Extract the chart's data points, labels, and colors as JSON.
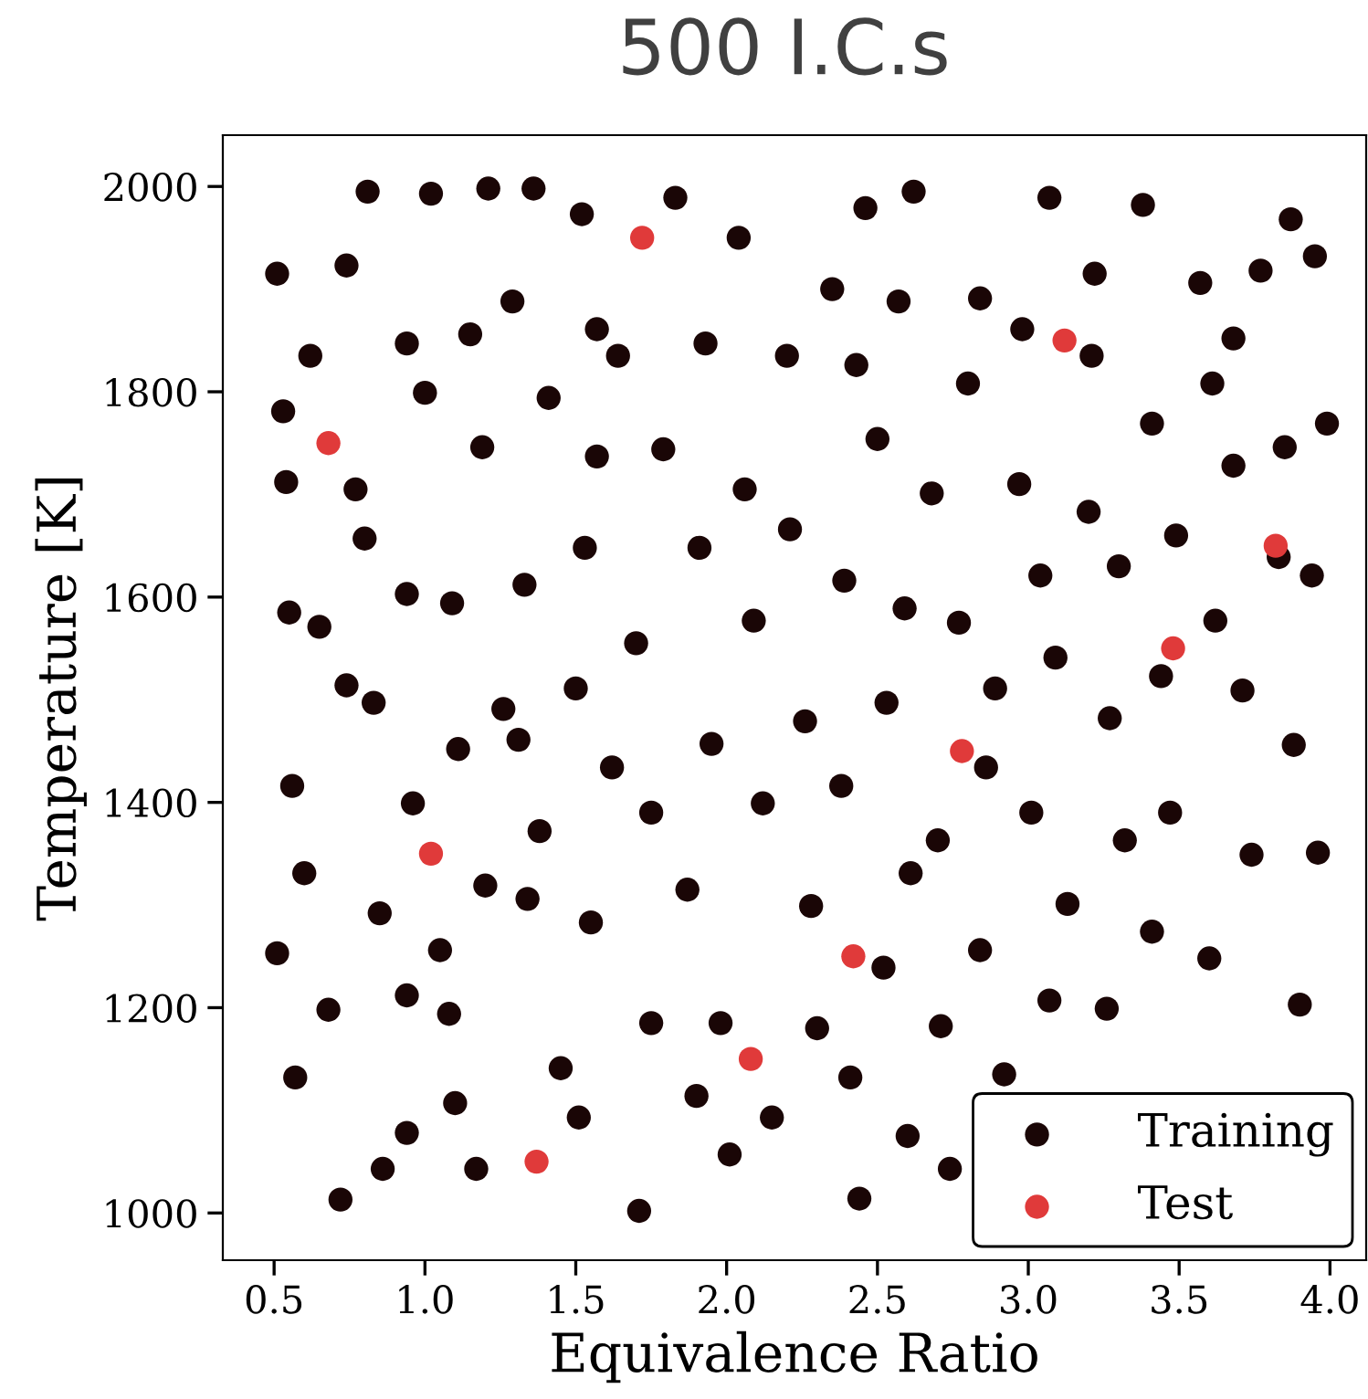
{
  "chart_data": {
    "type": "scatter",
    "title": "500 I.C.s",
    "xlabel": "Equivalence Ratio",
    "ylabel": "Temperature [K]",
    "xlim": [
      0.33,
      4.12
    ],
    "ylim": [
      954,
      2050
    ],
    "xticks": [
      0.5,
      {
        "value": 1,
        "label": "1.0"
      },
      1.5,
      {
        "value": 2,
        "label": "2.0"
      },
      2.5,
      {
        "value": 3,
        "label": "3.0"
      },
      3.5,
      {
        "value": 4,
        "label": "4.0"
      }
    ],
    "yticks": [
      1000,
      1200,
      1400,
      1600,
      1800,
      2000
    ],
    "grid": false,
    "legend": "bottom right",
    "marker": "circle",
    "series": [
      {
        "name": "Training",
        "color": "#1a0606",
        "x": [
          0.51,
          0.53,
          0.54,
          0.55,
          0.56,
          0.51,
          0.57,
          0.62,
          0.65,
          0.6,
          0.68,
          0.72,
          0.74,
          0.77,
          0.8,
          0.81,
          0.83,
          0.85,
          0.86,
          0.94,
          0.94,
          0.96,
          0.94,
          1.0,
          1.02,
          1.05,
          1.09,
          1.11,
          1.15,
          1.1,
          1.19,
          1.17,
          1.21,
          1.26,
          1.29,
          1.33,
          1.31,
          1.34,
          1.36,
          1.41,
          1.38,
          1.45,
          1.52,
          1.57,
          1.57,
          1.53,
          1.5,
          1.55,
          1.51,
          1.62,
          1.7,
          1.64,
          1.75,
          1.75,
          1.71,
          1.79,
          1.83,
          1.87,
          1.91,
          1.93,
          1.95,
          1.98,
          2.04,
          2.06,
          2.01,
          2.09,
          2.12,
          2.15,
          2.2,
          2.21,
          2.26,
          2.28,
          2.3,
          2.35,
          2.39,
          2.38,
          2.41,
          2.44,
          2.46,
          2.5,
          2.53,
          2.52,
          2.57,
          2.59,
          2.61,
          2.6,
          2.62,
          2.68,
          2.7,
          2.71,
          2.74,
          2.77,
          2.8,
          2.84,
          2.86,
          2.84,
          2.89,
          2.92,
          2.97,
          2.98,
          3.01,
          3.07,
          3.04,
          3.09,
          3.07,
          3.13,
          3.21,
          3.22,
          3.2,
          3.27,
          3.26,
          3.3,
          3.32,
          3.38,
          3.41,
          3.44,
          3.41,
          3.49,
          3.47,
          3.57,
          3.61,
          3.62,
          3.6,
          3.68,
          3.68,
          3.71,
          3.74,
          3.77,
          3.83,
          3.87,
          3.85,
          3.88,
          3.9,
          3.95,
          3.96,
          3.99,
          3.94,
          1.2,
          0.74,
          1.08,
          1.9,
          2.43,
          0.94
        ],
        "values": [
          1915,
          1781,
          1712,
          1585,
          1416,
          1253,
          1132,
          1835,
          1571,
          1331,
          1198,
          1013,
          1923,
          1705,
          1657,
          1995,
          1497,
          1292,
          1043,
          1847,
          1603,
          1399,
          1212,
          1799,
          1993,
          1256,
          1594,
          1452,
          1856,
          1107,
          1746,
          1043,
          1998,
          1491,
          1888,
          1612,
          1461,
          1306,
          1998,
          1794,
          1372,
          1141,
          1973,
          1861,
          1737,
          1648,
          1511,
          1283,
          1093,
          1434,
          1555,
          1835,
          1390,
          1185,
          1002,
          1744,
          1989,
          1315,
          1648,
          1847,
          1457,
          1185,
          1950,
          1705,
          1057,
          1577,
          1399,
          1093,
          1835,
          1666,
          1479,
          1299,
          1180,
          1900,
          1616,
          1416,
          1132,
          1014,
          1979,
          1754,
          1497,
          1239,
          1888,
          1589,
          1331,
          1075,
          1995,
          1701,
          1363,
          1182,
          1043,
          1575,
          1808,
          1891,
          1434,
          1256,
          1511,
          1135,
          1710,
          1861,
          1390,
          1989,
          1621,
          1541,
          1207,
          1301,
          1835,
          1915,
          1683,
          1482,
          1199,
          1630,
          1363,
          1982,
          1769,
          1523,
          1274,
          1660,
          1390,
          1906,
          1808,
          1577,
          1248,
          1852,
          1728,
          1509,
          1349,
          1918,
          1639,
          1968,
          1746,
          1456,
          1203,
          1932,
          1351,
          1769,
          1621,
          1319,
          1514,
          1194,
          1114,
          1826,
          1078
        ]
      },
      {
        "name": "Test",
        "color": "#e03a3a",
        "x": [
          0.68,
          1.72,
          3.12,
          1.02,
          1.37,
          2.42,
          2.08,
          2.78,
          3.48,
          3.82
        ],
        "values": [
          1750,
          1950,
          1850,
          1350,
          1050,
          1250,
          1150,
          1450,
          1550,
          1650
        ]
      }
    ]
  }
}
